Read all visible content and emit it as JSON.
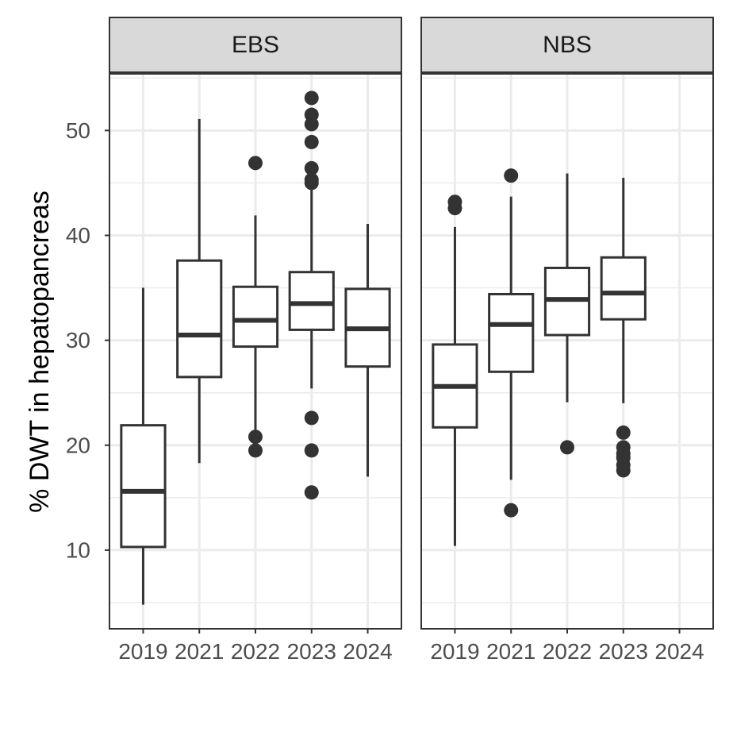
{
  "chart_data": {
    "type": "boxplot",
    "ylabel": "% DWT in hepatopancreas",
    "xlabel": "",
    "ylim": [
      2.5,
      55.4
    ],
    "yticks": [
      10,
      20,
      30,
      40,
      50
    ],
    "grid": true,
    "categories": [
      "2019",
      "2021",
      "2022",
      "2023",
      "2024"
    ],
    "panels": [
      {
        "label": "EBS",
        "boxes": [
          {
            "x": "2019",
            "min": 4.8,
            "q1": 10.3,
            "median": 15.6,
            "q3": 21.9,
            "max": 35.0,
            "outliers": []
          },
          {
            "x": "2021",
            "min": 18.3,
            "q1": 26.5,
            "median": 30.5,
            "q3": 37.6,
            "max": 51.1,
            "outliers": []
          },
          {
            "x": "2022",
            "min": 21.3,
            "q1": 29.4,
            "median": 31.9,
            "q3": 35.1,
            "max": 41.9,
            "outliers": [
              46.9,
              20.8,
              19.5
            ]
          },
          {
            "x": "2023",
            "min": 25.4,
            "q1": 31.0,
            "median": 33.5,
            "q3": 36.5,
            "max": 44.5,
            "outliers": [
              53.1,
              51.5,
              50.6,
              48.9,
              46.4,
              45.3,
              45.0,
              22.6,
              19.5,
              15.5
            ]
          },
          {
            "x": "2024",
            "min": 17.0,
            "q1": 27.5,
            "median": 31.1,
            "q3": 34.9,
            "max": 41.1,
            "outliers": []
          }
        ]
      },
      {
        "label": "NBS",
        "boxes": [
          {
            "x": "2019",
            "min": 10.4,
            "q1": 21.7,
            "median": 25.6,
            "q3": 29.6,
            "max": 40.8,
            "outliers": [
              43.2,
              42.6
            ]
          },
          {
            "x": "2021",
            "min": 16.7,
            "q1": 27.0,
            "median": 31.5,
            "q3": 34.4,
            "max": 43.7,
            "outliers": [
              45.7,
              13.8
            ]
          },
          {
            "x": "2022",
            "min": 24.1,
            "q1": 30.5,
            "median": 33.9,
            "q3": 36.9,
            "max": 45.9,
            "outliers": [
              19.8
            ]
          },
          {
            "x": "2023",
            "min": 24.0,
            "q1": 32.0,
            "median": 34.5,
            "q3": 37.9,
            "max": 45.5,
            "outliers": [
              21.2,
              19.8,
              19.2,
              18.8,
              18.1,
              17.6
            ]
          }
        ]
      }
    ]
  }
}
